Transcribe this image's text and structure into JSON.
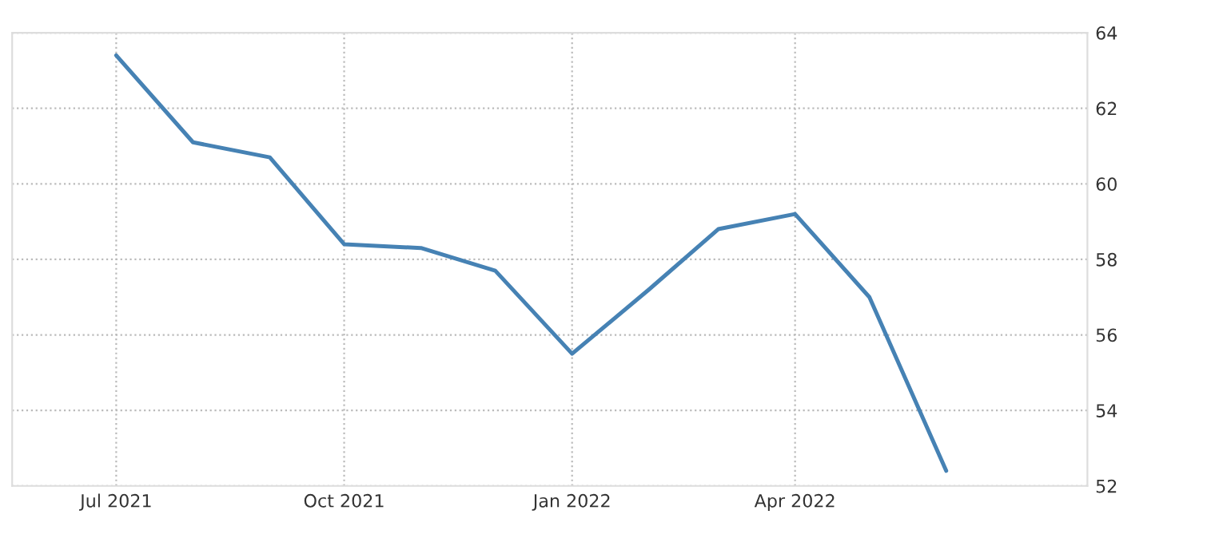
{
  "chart_data": {
    "type": "line",
    "x": [
      "2021-07",
      "2021-08",
      "2021-09",
      "2021-10",
      "2021-11",
      "2021-12",
      "2022-01",
      "2022-02",
      "2022-03",
      "2022-04",
      "2022-05",
      "2022-06"
    ],
    "series": [
      {
        "color": "#4682b4",
        "values": [
          63.4,
          61.1,
          60.7,
          58.4,
          58.3,
          57.7,
          55.5,
          57.2,
          58.8,
          59.2,
          57.0,
          52.4
        ]
      }
    ],
    "xlim": [
      "2021-05-20",
      "2022-07-28"
    ],
    "xticks": [
      {
        "value": "2021-07",
        "label": "Jul 2021"
      },
      {
        "value": "2021-10",
        "label": "Oct 2021"
      },
      {
        "value": "2022-01",
        "label": "Jan 2022"
      },
      {
        "value": "2022-04",
        "label": "Apr 2022"
      }
    ],
    "ylim": [
      52,
      64
    ],
    "yticks": [
      52,
      54,
      56,
      58,
      60,
      62,
      64
    ],
    "grid": true,
    "legend": false,
    "marker": "none",
    "line_style": "solid"
  }
}
